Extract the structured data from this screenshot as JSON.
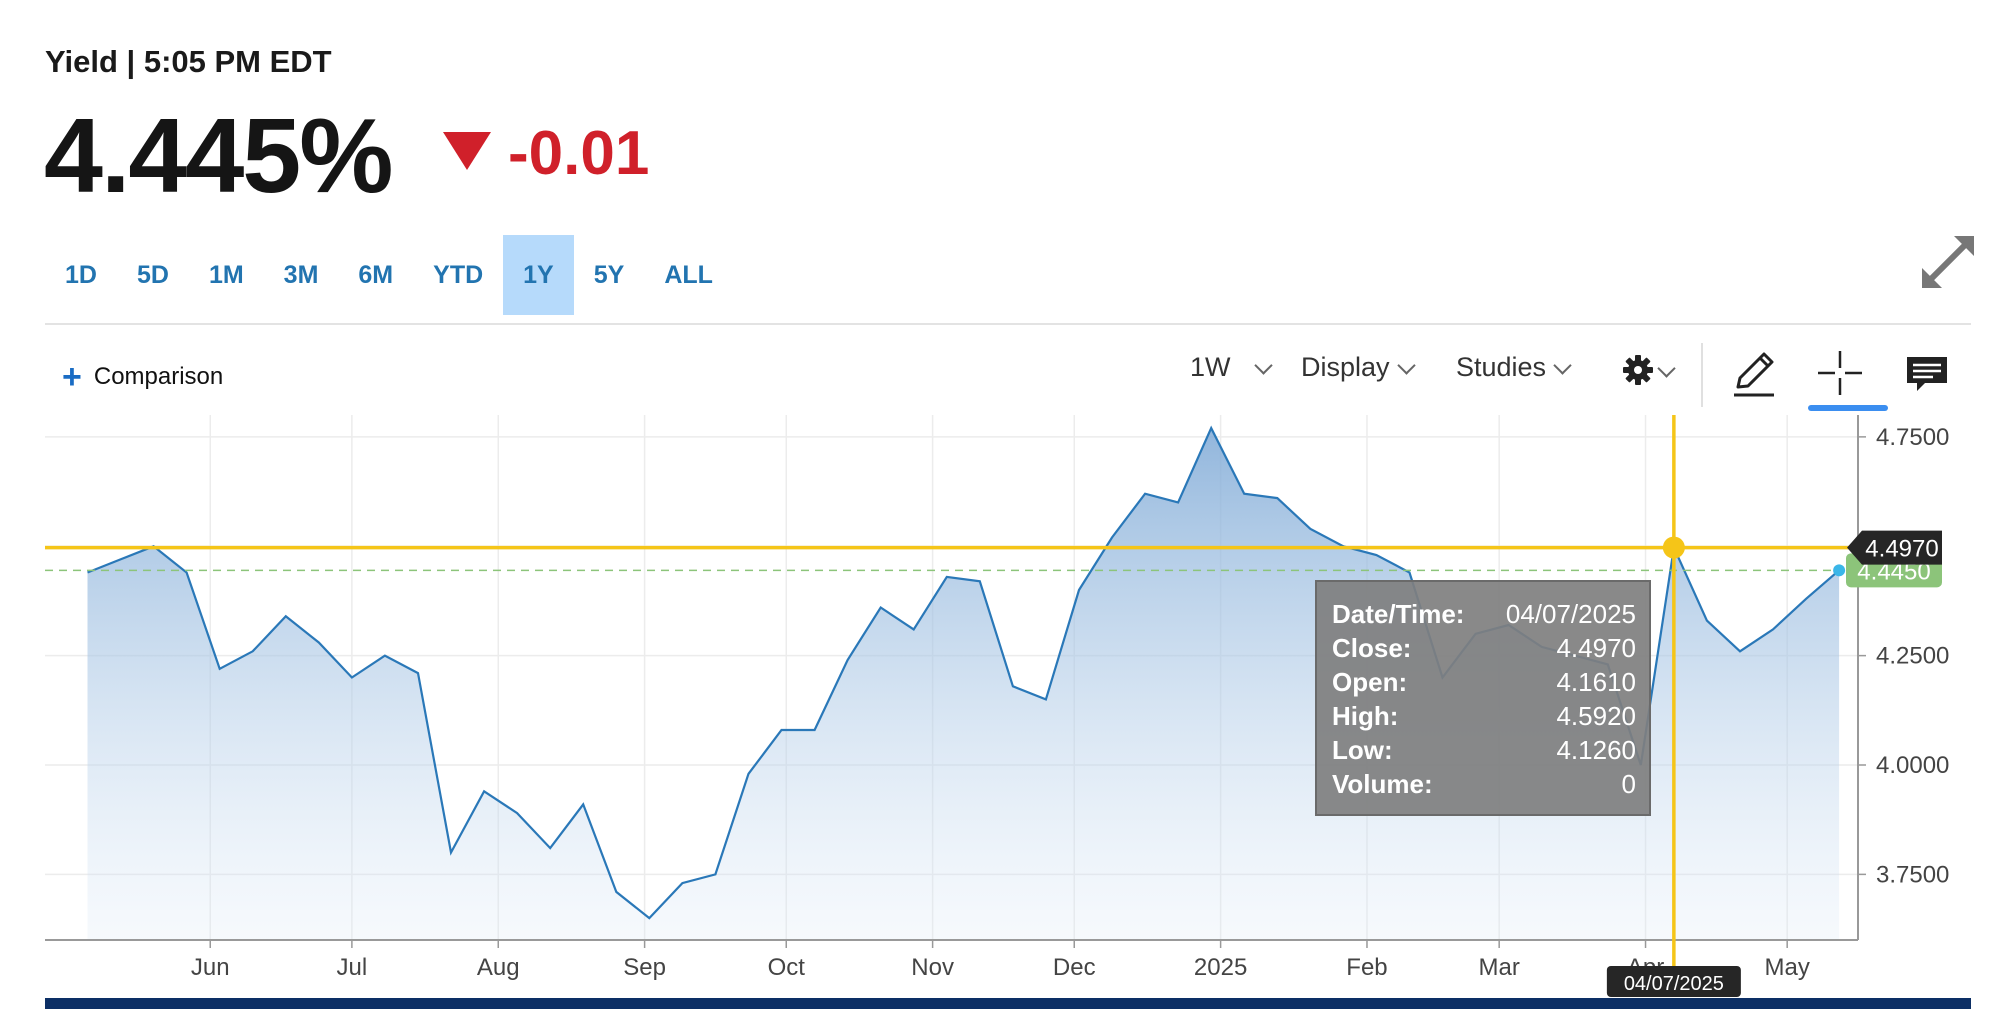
{
  "header": {
    "title": "Yield | 5:05 PM EDT",
    "price": "4.445%",
    "change": "-0.01",
    "change_direction": "down",
    "change_color": "#d0202a"
  },
  "ranges": [
    {
      "label": "1D",
      "active": false
    },
    {
      "label": "5D",
      "active": false
    },
    {
      "label": "1M",
      "active": false
    },
    {
      "label": "3M",
      "active": false
    },
    {
      "label": "6M",
      "active": false
    },
    {
      "label": "YTD",
      "active": false
    },
    {
      "label": "1Y",
      "active": true
    },
    {
      "label": "5Y",
      "active": false
    },
    {
      "label": "ALL",
      "active": false
    }
  ],
  "toolbar": {
    "comparison_label": "Comparison",
    "interval_label": "1W",
    "display_label": "Display",
    "studies_label": "Studies",
    "icons": [
      "expand-icon",
      "plus-icon",
      "gear-icon",
      "pencil-icon",
      "crosshair-icon",
      "comment-icon"
    ]
  },
  "chart_data": {
    "type": "area",
    "x": [
      "2024-05-06",
      "2024-05-13",
      "2024-05-20",
      "2024-05-27",
      "2024-06-03",
      "2024-06-10",
      "2024-06-17",
      "2024-06-24",
      "2024-07-01",
      "2024-07-08",
      "2024-07-15",
      "2024-07-22",
      "2024-07-29",
      "2024-08-05",
      "2024-08-12",
      "2024-08-19",
      "2024-08-26",
      "2024-09-02",
      "2024-09-09",
      "2024-09-16",
      "2024-09-23",
      "2024-09-30",
      "2024-10-07",
      "2024-10-14",
      "2024-10-21",
      "2024-10-28",
      "2024-11-04",
      "2024-11-11",
      "2024-11-18",
      "2024-11-25",
      "2024-12-02",
      "2024-12-09",
      "2024-12-16",
      "2024-12-23",
      "2024-12-30",
      "2025-01-06",
      "2025-01-13",
      "2025-01-20",
      "2025-01-27",
      "2025-02-03",
      "2025-02-10",
      "2025-02-17",
      "2025-02-24",
      "2025-03-03",
      "2025-03-10",
      "2025-03-17",
      "2025-03-24",
      "2025-03-31",
      "2025-04-07",
      "2025-04-14",
      "2025-04-21",
      "2025-04-28",
      "2025-05-05",
      "2025-05-12"
    ],
    "values": [
      4.44,
      4.47,
      4.5,
      4.44,
      4.22,
      4.26,
      4.34,
      4.28,
      4.2,
      4.25,
      4.21,
      3.8,
      3.94,
      3.89,
      3.81,
      3.91,
      3.71,
      3.65,
      3.73,
      3.75,
      3.98,
      4.08,
      4.08,
      4.24,
      4.36,
      4.31,
      4.43,
      4.42,
      4.18,
      4.15,
      4.4,
      4.52,
      4.62,
      4.6,
      4.77,
      4.62,
      4.61,
      4.54,
      4.5,
      4.48,
      4.44,
      4.2,
      4.3,
      4.32,
      4.27,
      4.25,
      4.23,
      4.0,
      4.497,
      4.33,
      4.26,
      4.31,
      4.38,
      4.445
    ],
    "x_tick_labels": [
      "Jun",
      "Jul",
      "Aug",
      "Sep",
      "Oct",
      "Nov",
      "Dec",
      "2025",
      "Feb",
      "Mar",
      "Apr",
      "May"
    ],
    "y_ticks": [
      3.75,
      4.0,
      4.25,
      4.5,
      4.75
    ],
    "y_tick_labels": [
      "3.7500",
      "4.0000",
      "4.2500",
      "4.7500"
    ],
    "ylim": [
      3.6,
      4.8
    ],
    "grid": true,
    "line_color": "#2a78b8",
    "last_value_label": "4.4450",
    "last_value_color": "#8cc47a",
    "crosshair": {
      "date": "2025-04-07",
      "value": 4.497,
      "value_label": "4.4970",
      "date_label": "04/07/2025",
      "color": "#f5c518"
    },
    "tooltip": {
      "rows": [
        {
          "label": "Date/Time:",
          "value": "04/07/2025"
        },
        {
          "label": "Close:",
          "value": "4.4970"
        },
        {
          "label": "Open:",
          "value": "4.1610"
        },
        {
          "label": "High:",
          "value": "4.5920"
        },
        {
          "label": "Low:",
          "value": "4.1260"
        },
        {
          "label": "Volume:",
          "value": "0"
        }
      ]
    }
  }
}
